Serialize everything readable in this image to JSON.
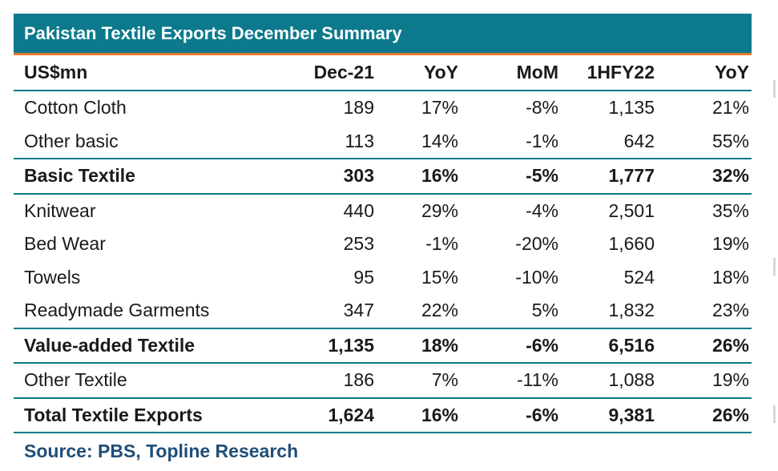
{
  "title": "Pakistan Textile Exports December Summary",
  "columns": [
    "US$mn",
    "Dec-21",
    "YoY",
    "MoM",
    "1HFY22",
    "YoY"
  ],
  "rows": [
    {
      "label": "Cotton Cloth",
      "dec21": "189",
      "yoy": "17%",
      "mom": "-8%",
      "h1fy22": "1,135",
      "yoy2": "21%",
      "bold": false
    },
    {
      "label": "Other basic",
      "dec21": "113",
      "yoy": "14%",
      "mom": "-1%",
      "h1fy22": "642",
      "yoy2": "55%",
      "bold": false
    },
    {
      "label": "Basic Textile",
      "dec21": "303",
      "yoy": "16%",
      "mom": "-5%",
      "h1fy22": "1,777",
      "yoy2": "32%",
      "bold": true
    },
    {
      "label": "Knitwear",
      "dec21": "440",
      "yoy": "29%",
      "mom": "-4%",
      "h1fy22": "2,501",
      "yoy2": "35%",
      "bold": false
    },
    {
      "label": "Bed Wear",
      "dec21": "253",
      "yoy": "-1%",
      "mom": "-20%",
      "h1fy22": "1,660",
      "yoy2": "19%",
      "bold": false
    },
    {
      "label": "Towels",
      "dec21": "95",
      "yoy": "15%",
      "mom": "-10%",
      "h1fy22": "524",
      "yoy2": "18%",
      "bold": false
    },
    {
      "label": "Readymade Garments",
      "dec21": "347",
      "yoy": "22%",
      "mom": "5%",
      "h1fy22": "1,832",
      "yoy2": "23%",
      "bold": false
    },
    {
      "label": "Value-added Textile",
      "dec21": "1,135",
      "yoy": "18%",
      "mom": "-6%",
      "h1fy22": "6,516",
      "yoy2": "26%",
      "bold": true
    },
    {
      "label": "Other Textile",
      "dec21": "186",
      "yoy": "7%",
      "mom": "-11%",
      "h1fy22": "1,088",
      "yoy2": "19%",
      "bold": false
    },
    {
      "label": "Total Textile Exports",
      "dec21": "1,624",
      "yoy": "16%",
      "mom": "-6%",
      "h1fy22": "9,381",
      "yoy2": "26%",
      "bold": true
    }
  ],
  "source": "Source: PBS, Topline Research",
  "colors": {
    "header_bg": "#0c7a8c",
    "accent_line": "#e8782a",
    "source_text": "#1f4e79"
  }
}
